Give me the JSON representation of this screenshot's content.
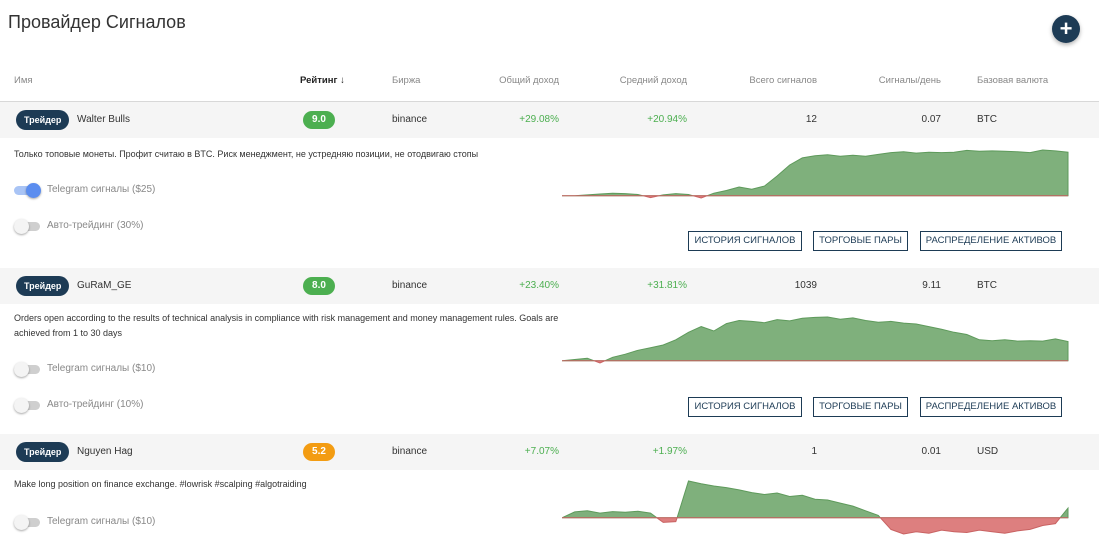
{
  "page": {
    "title": "Провайдер Сигналов",
    "add_label": "+"
  },
  "columns": {
    "name": "Имя",
    "rating": "Рейтинг",
    "sort_arrow": "↓",
    "exchange": "Биржа",
    "total_income": "Общий доход",
    "avg_income": "Средний доход",
    "total_signals": "Всего сигналов",
    "signals_per_day": "Сигналы/день",
    "base_currency": "Базовая валюта"
  },
  "buttons": {
    "history": "История сигналов",
    "pairs": "Торговые пары",
    "allocation": "Распределение активов"
  },
  "colors": {
    "badge": "#1d3b55",
    "rating_green": "#4caf50",
    "rating_orange": "#f39c12",
    "positive_text": "#4caf50",
    "chart_positive": "#7fb07c",
    "chart_negative": "#dd7f7f"
  },
  "providers": [
    {
      "badge": "Трейдер",
      "name": "Walter Bulls",
      "rating": "9.0",
      "rating_color": "#4caf50",
      "exchange": "binance",
      "total_income": "+29.08%",
      "avg_income": "+20.94%",
      "total_signals": "12",
      "signals_per_day": "0.07",
      "base_currency": "BTC",
      "description": "Только топовые монеты. Профит считаю в BTC. Риск менеджмент, не устредняю позиции, не отодвигаю стопы",
      "telegram": {
        "label": "Telegram сигналы ($25)",
        "on": true
      },
      "autotrade": {
        "label": "Авто-трейдинг (30%)",
        "on": false
      },
      "chart": [
        0,
        0,
        0.2,
        0.4,
        0.6,
        0.5,
        0.3,
        -0.4,
        0.2,
        0.5,
        0.3,
        -0.5,
        0.6,
        1.2,
        2.0,
        1.5,
        2.2,
        4.5,
        7.0,
        8.6,
        9.1,
        9.3,
        9.0,
        9.2,
        9.0,
        9.4,
        9.8,
        10.0,
        9.7,
        9.9,
        9.8,
        9.9,
        10.3,
        10.1,
        10.2,
        10.1,
        10.0,
        9.8,
        10.4,
        10.2,
        9.9
      ]
    },
    {
      "badge": "Трейдер",
      "name": "GuRaM_GE",
      "rating": "8.0",
      "rating_color": "#4caf50",
      "exchange": "binance",
      "total_income": "+23.40%",
      "avg_income": "+31.81%",
      "total_signals": "1039",
      "signals_per_day": "9.11",
      "base_currency": "BTC",
      "description": "Orders open according to the results of technical analysis in compliance with risk management and money management rules. Goals are achieved from 1 to 30 days",
      "telegram": {
        "label": "Telegram сигналы ($10)",
        "on": false
      },
      "autotrade": {
        "label": "Авто-трейдинг (10%)",
        "on": false
      },
      "chart": [
        0,
        0.3,
        0.6,
        -0.5,
        0.8,
        1.5,
        2.4,
        3.0,
        3.6,
        4.8,
        6.5,
        7.8,
        6.8,
        8.5,
        9.2,
        9.0,
        8.7,
        9.4,
        9.1,
        9.7,
        9.9,
        10.0,
        9.5,
        9.8,
        9.2,
        8.8,
        9.0,
        8.6,
        8.4,
        7.8,
        7.2,
        6.5,
        6.0,
        4.8,
        4.6,
        4.8,
        4.5,
        4.6,
        4.5,
        5.0,
        4.4
      ]
    },
    {
      "badge": "Трейдер",
      "name": "Nguyen Hag",
      "rating": "5.2",
      "rating_color": "#f39c12",
      "exchange": "binance",
      "total_income": "+7.07%",
      "avg_income": "+1.97%",
      "total_signals": "1",
      "signals_per_day": "0.01",
      "base_currency": "USD",
      "description": "Make long position on finance exchange. #lowrisk #scalping #algotraiding",
      "telegram": {
        "label": "Telegram сигналы ($10)",
        "on": false
      },
      "chart": [
        0,
        1.5,
        1.8,
        1.2,
        1.6,
        1.4,
        1.7,
        1.2,
        -1.2,
        -1.0,
        9.5,
        8.8,
        8.2,
        7.8,
        7.2,
        6.5,
        6.0,
        6.4,
        5.5,
        5.8,
        4.8,
        4.6,
        3.8,
        3.0,
        1.8,
        0.6,
        -3.0,
        -4.2,
        -3.6,
        -4.0,
        -3.2,
        -3.6,
        -3.8,
        -3.2,
        -3.6,
        -4.0,
        -3.4,
        -3.0,
        -2.0,
        -1.5,
        2.5
      ]
    }
  ]
}
